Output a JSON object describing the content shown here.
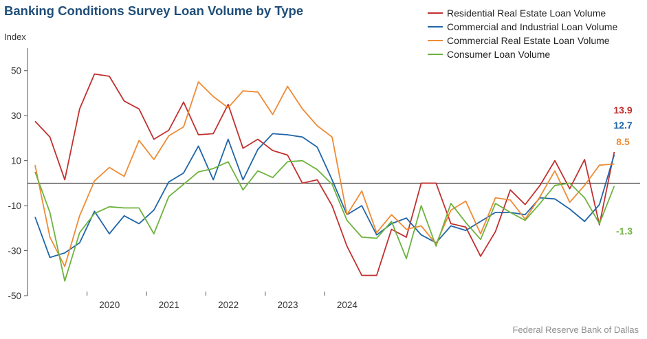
{
  "title": "Banking Conditions Survey Loan Volume by Type",
  "source": "Federal Reserve Bank of Dallas",
  "chart_data": {
    "type": "line",
    "ylabel": "Index",
    "ylim": [
      -50,
      60
    ],
    "yticks": [
      50,
      30,
      10,
      -10,
      -30,
      -50
    ],
    "xlim": [
      0,
      42.5
    ],
    "year_labels": [
      "2020",
      "2021",
      "2022",
      "2023",
      "2024"
    ],
    "legend_placement": "top-right",
    "grid": false,
    "series": [
      {
        "name": "Residential Real Estate Loan Volume",
        "color": "#c0312f",
        "values": [
          27.5,
          20.5,
          1.5,
          33,
          48.5,
          47.5,
          36.5,
          33,
          19.5,
          23.5,
          36,
          21.5,
          22,
          35,
          15.5,
          19.5,
          14.5,
          12.5,
          0,
          1.5,
          -10,
          -28,
          -41,
          -41,
          -20.5,
          -24,
          0,
          0,
          -18,
          -19.5,
          -32.5,
          -21.5,
          -3,
          -9.5,
          -1,
          10,
          -2.5,
          10.5,
          -18.5,
          13.9
        ],
        "end_label": "13.9"
      },
      {
        "name": "Commercial and Industrial Loan Volume",
        "color": "#1f65a8",
        "values": [
          -15,
          -33,
          -31,
          -26.5,
          -12.5,
          -22.5,
          -14.5,
          -18,
          -12,
          0.5,
          4.5,
          16.5,
          1.5,
          19.5,
          1.5,
          15,
          22,
          21.5,
          20.5,
          16,
          1.5,
          -14,
          -10,
          -23,
          -18,
          -15.5,
          -23,
          -26.5,
          -19,
          -21,
          -17,
          -13,
          -13,
          -14,
          -6.5,
          -7,
          -11.5,
          -17,
          -9.5,
          12.7
        ],
        "end_label": "12.7"
      },
      {
        "name": "Commercial Real Estate Loan Volume",
        "color": "#ef8a34",
        "values": [
          8,
          -24,
          -37,
          -14.5,
          1,
          7,
          3,
          19,
          10.5,
          21,
          25,
          45,
          38.5,
          33.5,
          41,
          40.5,
          30.5,
          43,
          33,
          25.5,
          20.5,
          -14,
          -3.5,
          -22,
          -14,
          -20.5,
          -19,
          -27,
          -12,
          -8,
          -22.5,
          -6.5,
          -7.5,
          -16,
          -6,
          5.5,
          -8.5,
          -1,
          8,
          8.5
        ],
        "end_label": "8.5"
      },
      {
        "name": "Consumer Loan Volume",
        "color": "#6db33f",
        "values": [
          5,
          -13,
          -43.5,
          -22,
          -13.5,
          -10.5,
          -11,
          -11,
          -22.5,
          -6,
          -0.5,
          5,
          6.5,
          9.5,
          -3,
          5.5,
          2.5,
          9.5,
          10,
          6,
          -0.5,
          -16.5,
          -24,
          -24.5,
          -17,
          -33.5,
          -10,
          -28,
          -9,
          -17.5,
          -25,
          -9,
          -13,
          -16.5,
          -9,
          -1,
          0,
          -6.5,
          -18,
          -1.3
        ],
        "end_label": "-1.3"
      }
    ]
  }
}
